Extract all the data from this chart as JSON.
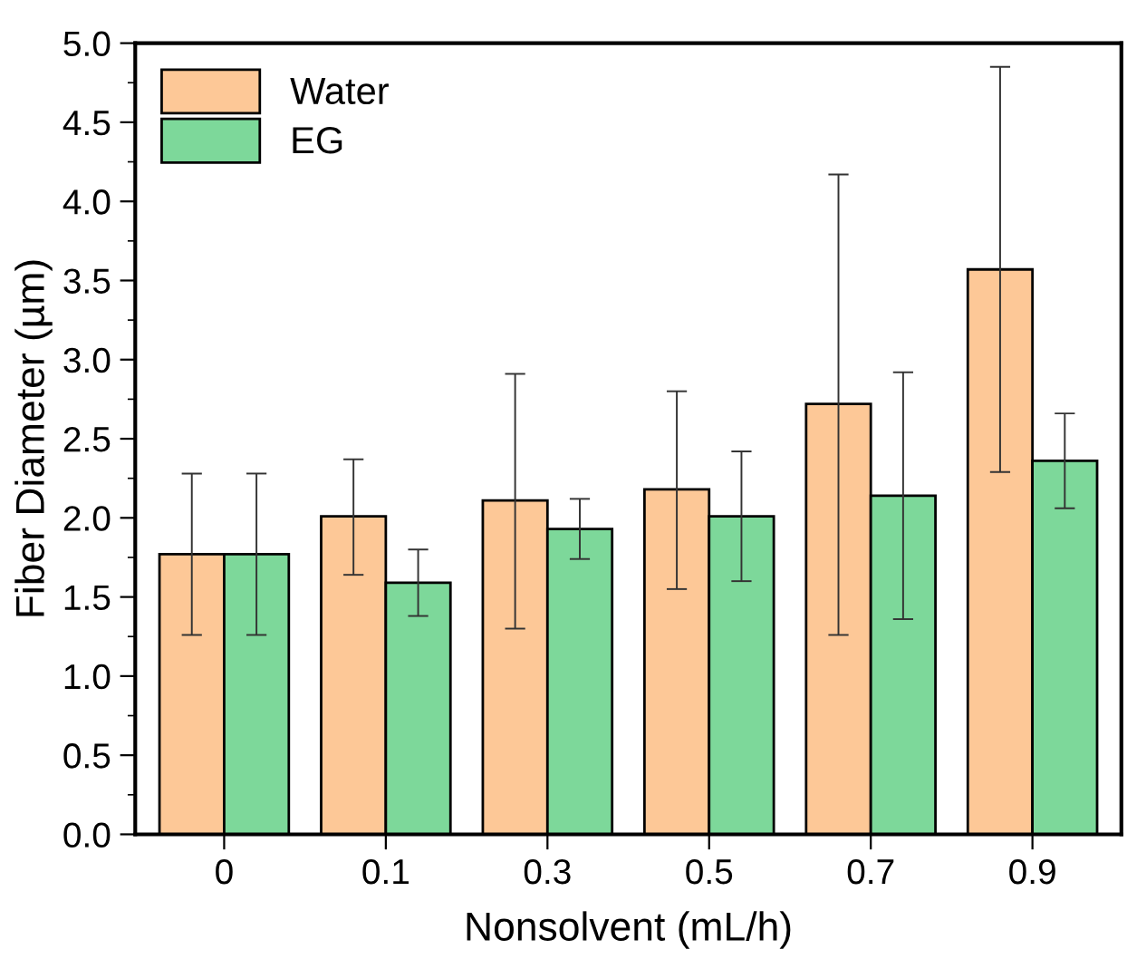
{
  "chart_data": {
    "type": "bar",
    "xlabel": "Nonsolvent (mL/h)",
    "ylabel": "Fiber Diameter (µm)",
    "categories": [
      "0",
      "0.1",
      "0.3",
      "0.5",
      "0.7",
      "0.9"
    ],
    "series": [
      {
        "name": "Water",
        "color": "#fdc897",
        "values": [
          1.77,
          2.01,
          2.11,
          2.18,
          2.72,
          3.57
        ],
        "errors": [
          [
            1.26,
            2.28
          ],
          [
            1.64,
            2.37
          ],
          [
            1.3,
            2.91
          ],
          [
            1.55,
            2.8
          ],
          [
            1.26,
            4.17
          ],
          [
            2.29,
            4.85
          ]
        ]
      },
      {
        "name": "EG",
        "color": "#7dd89a",
        "values": [
          1.77,
          1.59,
          1.93,
          2.01,
          2.14,
          2.36
        ],
        "errors": [
          [
            1.26,
            2.28
          ],
          [
            1.38,
            1.8
          ],
          [
            1.74,
            2.12
          ],
          [
            1.6,
            2.42
          ],
          [
            1.36,
            2.92
          ],
          [
            2.06,
            2.66
          ]
        ]
      }
    ],
    "ylim": [
      0,
      5
    ],
    "yticks": [
      {
        "value": 0,
        "label": "0.0"
      },
      0.5,
      {
        "value": 1,
        "label": "1.0"
      },
      1.5,
      {
        "value": 2,
        "label": "2.0"
      },
      2.5,
      {
        "value": 3,
        "label": "3.0"
      },
      3.5,
      {
        "value": 4,
        "label": "4.0"
      },
      4.5,
      {
        "value": 5,
        "label": "5.0"
      }
    ],
    "grid": false,
    "legend": "top left"
  }
}
